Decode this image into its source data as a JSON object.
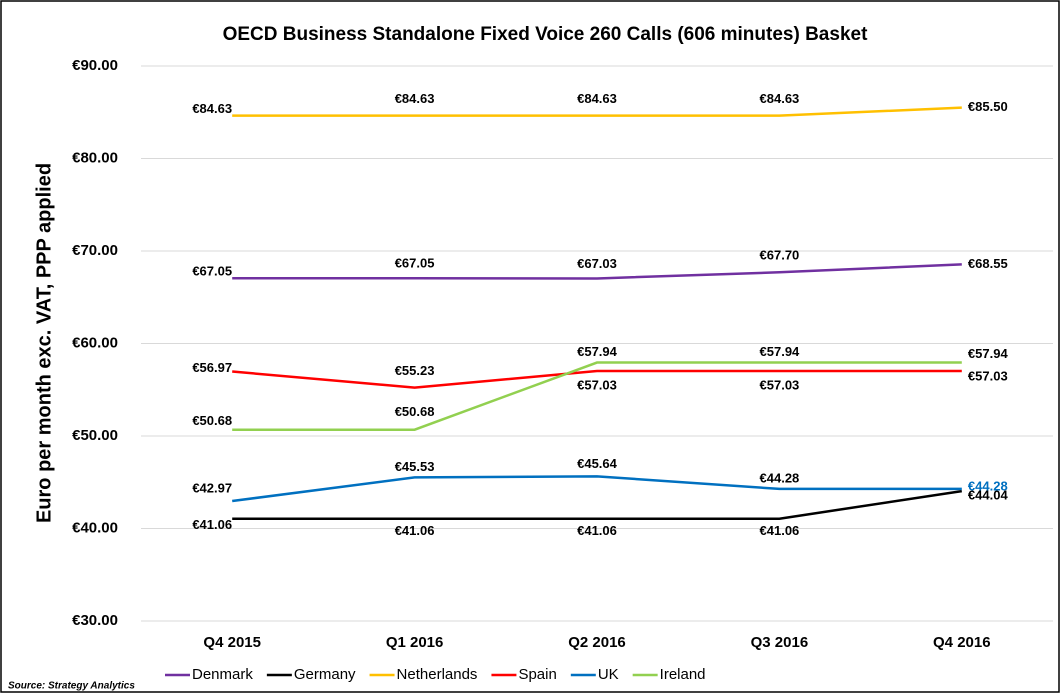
{
  "chart_data": {
    "type": "line",
    "title": "OECD Business Standalone Fixed Voice 260 Calls (606 minutes) Basket",
    "y_label": "Euro per month exc. VAT, PPP applied",
    "source": "Source:  Strategy Analytics",
    "categories": [
      "Q4 2015",
      "Q1 2016",
      "Q2 2016",
      "Q3 2016",
      "Q4 2016"
    ],
    "ylim": [
      30,
      90
    ],
    "yticks": [
      {
        "value": 30,
        "label": "€30.00"
      },
      {
        "value": 40,
        "label": "€40.00"
      },
      {
        "value": 50,
        "label": "€50.00"
      },
      {
        "value": 60,
        "label": "€60.00"
      },
      {
        "value": 70,
        "label": "€70.00"
      },
      {
        "value": 80,
        "label": "€80.00"
      },
      {
        "value": 90,
        "label": "€90.00"
      }
    ],
    "grid": true,
    "legend": "bottom",
    "series": [
      {
        "name": "Denmark",
        "color": "#7030a0",
        "values": [
          67.05,
          67.05,
          67.03,
          67.7,
          68.55
        ],
        "value_labels": [
          "€67.05",
          "€67.05",
          "€67.03",
          "€67.70",
          "€68.55"
        ]
      },
      {
        "name": "Germany",
        "color": "#000000",
        "values": [
          41.06,
          41.06,
          41.06,
          41.06,
          44.04
        ],
        "value_labels": [
          "€41.06",
          "€41.06",
          "€41.06",
          "€41.06",
          "€44.04"
        ]
      },
      {
        "name": "Netherlands",
        "color": "#ffc000",
        "values": [
          84.63,
          84.63,
          84.63,
          84.63,
          85.5
        ],
        "value_labels": [
          "€84.63",
          "€84.63",
          "€84.63",
          "€84.63",
          "€85.50"
        ]
      },
      {
        "name": "Spain",
        "color": "#ff0000",
        "values": [
          56.97,
          55.23,
          57.03,
          57.03,
          57.03
        ],
        "value_labels": [
          "€56.97",
          "€55.23",
          "€57.03",
          "€57.03",
          "€57.03"
        ]
      },
      {
        "name": "UK",
        "color": "#0070c0",
        "values": [
          42.97,
          45.53,
          45.64,
          44.28,
          44.28
        ],
        "value_labels": [
          "€42.97",
          "€45.53",
          "€45.64",
          "€44.28",
          "€44.28"
        ]
      },
      {
        "name": "Ireland",
        "color": "#92d050",
        "values": [
          50.68,
          50.68,
          57.94,
          57.94,
          57.94
        ],
        "value_labels": [
          "€50.68",
          "€50.68",
          "€57.94",
          "€57.94",
          "€57.94"
        ]
      }
    ]
  }
}
